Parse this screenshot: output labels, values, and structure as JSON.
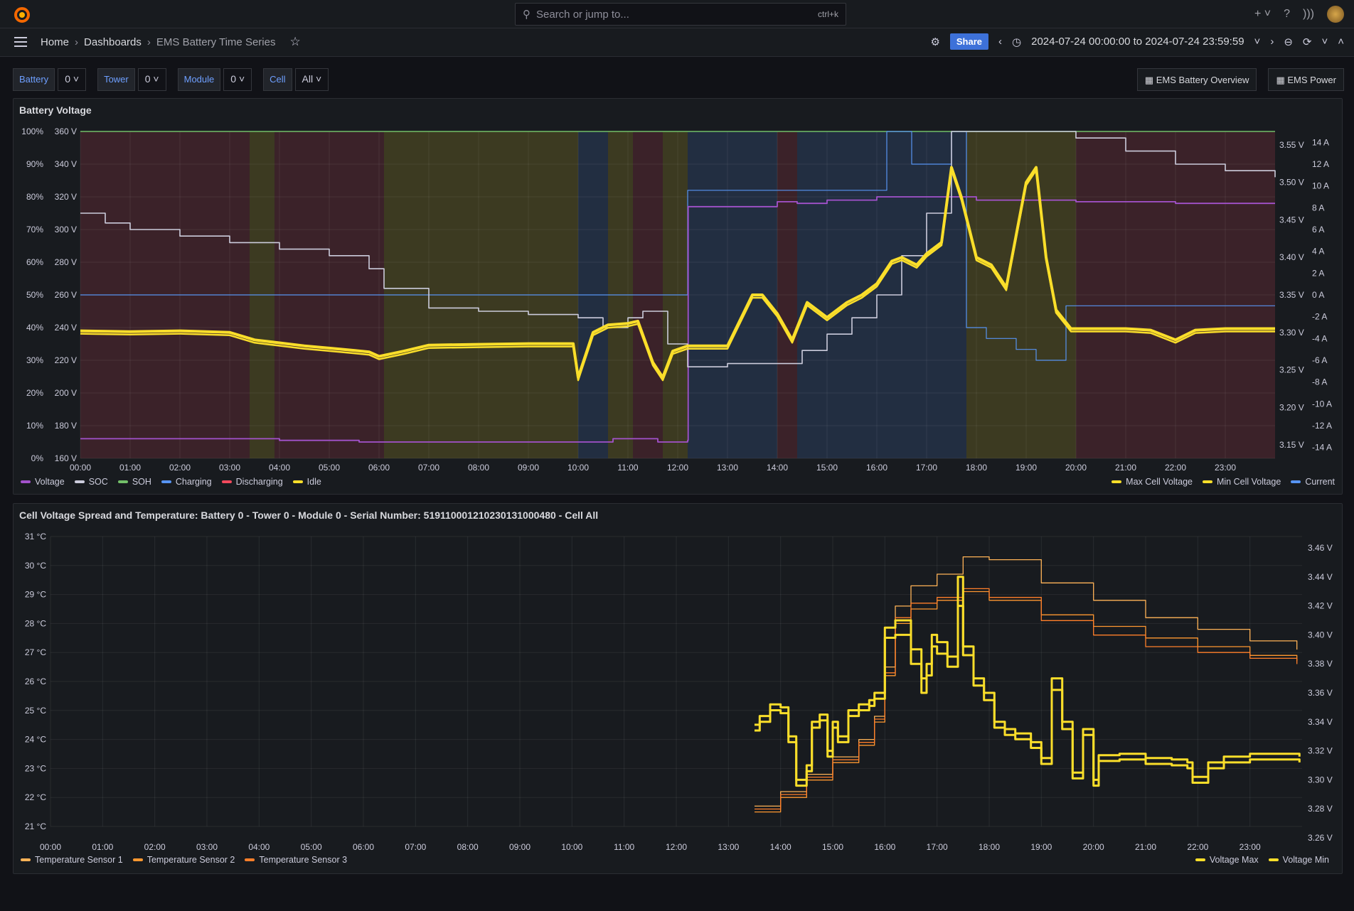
{
  "search": {
    "placeholder": "Search or jump to...",
    "shortcut": "ctrl+k"
  },
  "breadcrumb": {
    "home": "Home",
    "dashboards": "Dashboards",
    "current": "EMS Battery Time Series"
  },
  "toolbar": {
    "share": "Share",
    "time_range": "2024-07-24 00:00:00 to 2024-07-24 23:59:59"
  },
  "variables": [
    {
      "label": "Battery",
      "value": "0"
    },
    {
      "label": "Tower",
      "value": "0"
    },
    {
      "label": "Module",
      "value": "0"
    },
    {
      "label": "Cell",
      "value": "All"
    }
  ],
  "links": [
    "EMS Battery Overview",
    "EMS Power"
  ],
  "colors": {
    "voltage": "#a352cc",
    "soc": "#ccccdc",
    "soh": "#73bf69",
    "charging": "#5794f2",
    "discharging": "#f2495c",
    "idle": "#fade2a",
    "current": "#5794f2",
    "temp1": "#ffb357",
    "temp2": "#ff9830",
    "temp3": "#ff7f2a"
  },
  "chart_data": [
    {
      "type": "line",
      "title": "Battery Voltage",
      "x_ticks": [
        "00:00",
        "01:00",
        "02:00",
        "03:00",
        "04:00",
        "05:00",
        "06:00",
        "07:00",
        "08:00",
        "09:00",
        "10:00",
        "11:00",
        "12:00",
        "13:00",
        "14:00",
        "15:00",
        "16:00",
        "17:00",
        "18:00",
        "19:00",
        "20:00",
        "21:00",
        "22:00",
        "23:00"
      ],
      "y_left_pct_ticks": [
        "0%",
        "10%",
        "20%",
        "30%",
        "40%",
        "50%",
        "60%",
        "70%",
        "80%",
        "90%",
        "100%"
      ],
      "y_left_volt_ticks": [
        "160 V",
        "180 V",
        "200 V",
        "220 V",
        "240 V",
        "260 V",
        "280 V",
        "300 V",
        "320 V",
        "340 V",
        "360 V"
      ],
      "y_right_cell_ticks": [
        "3.15 V",
        "3.20 V",
        "3.25 V",
        "3.30 V",
        "3.35 V",
        "3.40 V",
        "3.45 V",
        "3.50 V",
        "3.55 V"
      ],
      "y_right_current_ticks": [
        "-14 A",
        "-12 A",
        "-10 A",
        "-8 A",
        "-6 A",
        "-4 A",
        "-2 A",
        "0 A",
        "2 A",
        "4 A",
        "6 A",
        "8 A",
        "10 A",
        "12 A",
        "14 A"
      ],
      "state_bands": [
        {
          "start": 0.0,
          "end": 3.4,
          "state": "Discharging"
        },
        {
          "start": 3.4,
          "end": 3.9,
          "state": "Idle"
        },
        {
          "start": 3.9,
          "end": 6.1,
          "state": "Discharging"
        },
        {
          "start": 6.1,
          "end": 10.0,
          "state": "Idle"
        },
        {
          "start": 10.0,
          "end": 10.6,
          "state": "Charging"
        },
        {
          "start": 10.6,
          "end": 11.1,
          "state": "Idle"
        },
        {
          "start": 11.1,
          "end": 11.7,
          "state": "Discharging"
        },
        {
          "start": 11.7,
          "end": 12.2,
          "state": "Idle"
        },
        {
          "start": 12.2,
          "end": 14.0,
          "state": "Charging"
        },
        {
          "start": 14.0,
          "end": 14.4,
          "state": "Discharging"
        },
        {
          "start": 14.4,
          "end": 17.8,
          "state": "Charging"
        },
        {
          "start": 17.8,
          "end": 20.0,
          "state": "Idle"
        },
        {
          "start": 20.0,
          "end": 24.0,
          "state": "Discharging"
        }
      ],
      "series": [
        {
          "name": "SOC",
          "axis": "pct",
          "x": [
            0,
            0.5,
            1,
            2,
            3,
            4,
            5,
            5.8,
            6.1,
            7,
            8,
            9,
            10,
            10.5,
            11,
            11.3,
            11.8,
            12.2,
            13,
            14,
            14.5,
            15,
            15.5,
            16,
            16.5,
            17,
            17.5,
            18,
            19,
            20,
            21,
            22,
            23,
            24
          ],
          "values": [
            75,
            72,
            70,
            68,
            66,
            64,
            62,
            58,
            52,
            46,
            45,
            44,
            43,
            40,
            43,
            45,
            35,
            28,
            29,
            29,
            33,
            38,
            43,
            50,
            62,
            75,
            100,
            100,
            100,
            98,
            94,
            90,
            88,
            86
          ]
        },
        {
          "name": "Voltage",
          "axis": "volt",
          "x": [
            0,
            2,
            4,
            5.6,
            6,
            8,
            10,
            10.7,
            11.2,
            11.6,
            11.8,
            12.2,
            12.21,
            13,
            14,
            14.4,
            15,
            16,
            17,
            18,
            19,
            20,
            22,
            24
          ],
          "values": [
            172,
            172,
            171,
            170,
            170,
            170,
            170,
            172,
            172,
            170,
            170,
            171,
            314,
            314,
            317,
            316,
            318,
            320,
            320,
            318,
            318,
            317,
            316,
            316
          ]
        },
        {
          "name": "Max Cell Voltage",
          "axis": "cell",
          "x": [
            0,
            1,
            2,
            3,
            3.5,
            4,
            4.5,
            5,
            5.5,
            5.8,
            6,
            6.5,
            7,
            8,
            9,
            9.9,
            10,
            10.3,
            10.6,
            11,
            11.2,
            11.5,
            11.7,
            11.9,
            12.2,
            13,
            13.5,
            13.7,
            14,
            14.3,
            14.6,
            15,
            15.4,
            15.7,
            16,
            16.3,
            16.5,
            16.8,
            17,
            17.3,
            17.5,
            17.7,
            18,
            18.3,
            18.6,
            19,
            19.2,
            19.4,
            19.6,
            19.9,
            20,
            21,
            21.5,
            22,
            22.4,
            23,
            24
          ],
          "values": [
            3.302,
            3.301,
            3.302,
            3.3,
            3.29,
            3.286,
            3.282,
            3.279,
            3.276,
            3.274,
            3.268,
            3.275,
            3.283,
            3.284,
            3.285,
            3.285,
            3.24,
            3.3,
            3.31,
            3.312,
            3.315,
            3.26,
            3.24,
            3.275,
            3.282,
            3.282,
            3.35,
            3.35,
            3.325,
            3.29,
            3.34,
            3.32,
            3.34,
            3.35,
            3.365,
            3.395,
            3.4,
            3.39,
            3.405,
            3.42,
            3.52,
            3.48,
            3.4,
            3.39,
            3.36,
            3.5,
            3.52,
            3.4,
            3.33,
            3.305,
            3.305,
            3.305,
            3.303,
            3.29,
            3.303,
            3.305,
            3.305
          ]
        },
        {
          "name": "Current",
          "axis": "current",
          "x": [
            0,
            12.18,
            12.2,
            15.5,
            16.2,
            16.7,
            17.5,
            17.8,
            18.2,
            18.8,
            19.2,
            19.8,
            20,
            24
          ],
          "values": [
            0,
            0,
            9.6,
            9.6,
            15,
            12,
            15,
            -3,
            -4,
            -5,
            -6,
            -1,
            -1,
            -1
          ]
        }
      ],
      "legend_left": [
        "Voltage",
        "SOC",
        "SOH",
        "Charging",
        "Discharging",
        "Idle"
      ],
      "legend_right": [
        "Max Cell Voltage",
        "Min Cell Voltage",
        "Current"
      ]
    },
    {
      "type": "line",
      "title": "Cell Voltage Spread and Temperature: Battery 0 - Tower 0 - Module 0 - Serial Number: 519110001210230131000480 - Cell All",
      "x_ticks": [
        "00:00",
        "01:00",
        "02:00",
        "03:00",
        "04:00",
        "05:00",
        "06:00",
        "07:00",
        "08:00",
        "09:00",
        "10:00",
        "11:00",
        "12:00",
        "13:00",
        "14:00",
        "15:00",
        "16:00",
        "17:00",
        "18:00",
        "19:00",
        "20:00",
        "21:00",
        "22:00",
        "23:00"
      ],
      "y_left_ticks": [
        "21 °C",
        "22 °C",
        "23 °C",
        "24 °C",
        "25 °C",
        "26 °C",
        "27 °C",
        "28 °C",
        "29 °C",
        "30 °C",
        "31 °C"
      ],
      "y_right_ticks": [
        "3.26 V",
        "3.28 V",
        "3.30 V",
        "3.32 V",
        "3.34 V",
        "3.36 V",
        "3.38 V",
        "3.40 V",
        "3.42 V",
        "3.44 V",
        "3.46 V"
      ],
      "series": [
        {
          "name": "Temperature Sensor 1",
          "axis": "temp",
          "x": [
            13.5,
            14,
            14.5,
            15,
            15.5,
            15.8,
            16,
            16.2,
            16.5,
            17,
            17.5,
            18,
            19,
            20,
            21,
            22,
            23,
            23.9
          ],
          "values": [
            21.7,
            22.2,
            22.8,
            23.4,
            24.0,
            24.8,
            26.5,
            28.6,
            29.3,
            29.7,
            30.3,
            30.2,
            29.4,
            28.8,
            28.2,
            27.8,
            27.4,
            27.1
          ]
        },
        {
          "name": "Temperature Sensor 2",
          "axis": "temp",
          "x": [
            13.5,
            14,
            14.5,
            15,
            15.5,
            15.8,
            16,
            16.2,
            16.5,
            17,
            17.5,
            18,
            19,
            20,
            21,
            22,
            23,
            23.9
          ],
          "values": [
            21.5,
            22.0,
            22.6,
            23.2,
            23.8,
            24.6,
            26.2,
            28.0,
            28.5,
            28.8,
            29.1,
            28.8,
            28.3,
            27.9,
            27.5,
            27.2,
            26.9,
            26.7
          ]
        },
        {
          "name": "Temperature Sensor 3",
          "axis": "temp",
          "x": [
            13.5,
            14,
            14.5,
            15,
            15.5,
            15.8,
            16,
            16.2,
            16.5,
            17,
            17.5,
            18,
            19,
            20,
            21,
            22,
            23,
            23.9
          ],
          "values": [
            21.6,
            22.1,
            22.7,
            23.3,
            23.9,
            24.7,
            26.3,
            28.2,
            28.7,
            28.9,
            29.2,
            28.9,
            28.1,
            27.6,
            27.2,
            27.0,
            26.8,
            26.6
          ]
        },
        {
          "name": "Voltage Max",
          "axis": "cell",
          "x": [
            13.5,
            13.6,
            13.8,
            14.0,
            14.15,
            14.3,
            14.5,
            14.6,
            14.75,
            14.9,
            15.0,
            15.1,
            15.3,
            15.5,
            15.7,
            15.8,
            16.0,
            16.2,
            16.5,
            16.7,
            16.8,
            16.9,
            17.0,
            17.2,
            17.4,
            17.5,
            17.7,
            17.9,
            18.1,
            18.3,
            18.5,
            18.8,
            19.0,
            19.2,
            19.4,
            19.6,
            19.8,
            20.0,
            20.1,
            20.5,
            21,
            21.5,
            21.8,
            21.9,
            22.2,
            22.5,
            23,
            23.5,
            23.95
          ],
          "values": [
            3.338,
            3.344,
            3.352,
            3.35,
            3.33,
            3.3,
            3.31,
            3.34,
            3.345,
            3.32,
            3.34,
            3.33,
            3.348,
            3.352,
            3.355,
            3.36,
            3.405,
            3.41,
            3.39,
            3.37,
            3.38,
            3.4,
            3.395,
            3.385,
            3.44,
            3.392,
            3.37,
            3.36,
            3.34,
            3.335,
            3.332,
            3.326,
            3.315,
            3.37,
            3.34,
            3.305,
            3.335,
            3.3,
            3.317,
            3.318,
            3.315,
            3.314,
            3.312,
            3.302,
            3.312,
            3.316,
            3.318,
            3.318,
            3.316
          ]
        },
        {
          "name": "Voltage Min",
          "axis": "cell",
          "x": [
            13.5,
            13.6,
            13.8,
            14.0,
            14.15,
            14.3,
            14.5,
            14.6,
            14.75,
            14.9,
            15.0,
            15.1,
            15.3,
            15.5,
            15.7,
            15.8,
            16.0,
            16.2,
            16.5,
            16.7,
            16.8,
            16.9,
            17.0,
            17.2,
            17.4,
            17.5,
            17.7,
            17.9,
            18.1,
            18.3,
            18.5,
            18.8,
            19.0,
            19.2,
            19.4,
            19.6,
            19.8,
            20.0,
            20.1,
            20.5,
            21,
            21.5,
            21.8,
            21.9,
            22.2,
            22.5,
            23,
            23.5,
            23.95
          ],
          "values": [
            3.334,
            3.34,
            3.348,
            3.346,
            3.326,
            3.296,
            3.306,
            3.336,
            3.341,
            3.316,
            3.336,
            3.326,
            3.344,
            3.348,
            3.351,
            3.356,
            3.398,
            3.4,
            3.38,
            3.36,
            3.372,
            3.392,
            3.387,
            3.378,
            3.42,
            3.386,
            3.365,
            3.355,
            3.336,
            3.331,
            3.328,
            3.322,
            3.311,
            3.362,
            3.335,
            3.301,
            3.331,
            3.296,
            3.313,
            3.314,
            3.311,
            3.31,
            3.308,
            3.298,
            3.308,
            3.312,
            3.314,
            3.314,
            3.312
          ]
        }
      ],
      "legend_left": [
        "Temperature Sensor 1",
        "Temperature Sensor 2",
        "Temperature Sensor 3"
      ],
      "legend_right": [
        "Voltage Max",
        "Voltage Min"
      ]
    }
  ]
}
